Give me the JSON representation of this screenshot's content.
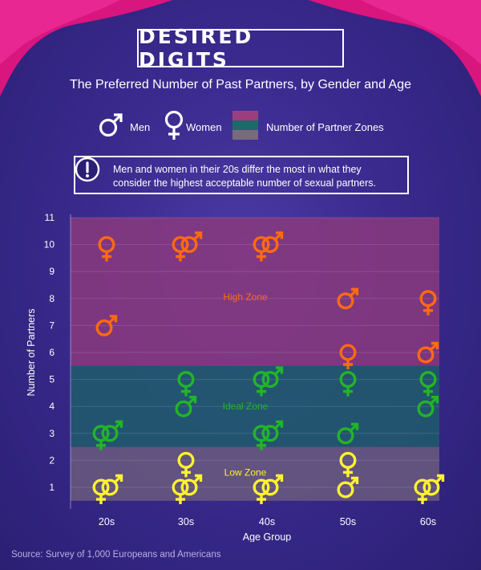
{
  "header": {
    "title": "DESIRED DIGITS",
    "subtitle": "The Preferred Number of Past Partners, by Gender and Age"
  },
  "legend": {
    "men_label": "Men",
    "women_label": "Women",
    "zones_label": "Number of Partner Zones"
  },
  "callout": {
    "text": "Men and women in their 20s differ the most in what they consider the highest acceptable number of sexual partners."
  },
  "source": "Source: Survey of 1,000 Europeans and Americans",
  "colors": {
    "background": "#3a2a8e",
    "high": "#ff6a10",
    "ideal": "#22b527",
    "low": "#fff231",
    "curtain": "#e01e8c",
    "high_zone": "#8a3a7d",
    "ideal_zone": "#1f5c6b",
    "low_zone": "#6a5a7e"
  },
  "icons": {
    "men": "male-symbol-icon",
    "women": "female-symbol-icon",
    "callout": "exclamation-icon"
  },
  "chart_data": {
    "type": "scatter",
    "xlabel": "Age Group",
    "ylabel": "Number of Partners",
    "categories": [
      "20s",
      "30s",
      "40s",
      "50s",
      "60s"
    ],
    "ylim": [
      0,
      11
    ],
    "yticks": [
      1,
      2,
      3,
      4,
      5,
      6,
      7,
      8,
      9,
      10,
      11
    ],
    "zones": [
      {
        "label": "Low Zone",
        "from": 0.5,
        "to": 2.5,
        "color": "#6a5a7e"
      },
      {
        "label": "Ideal Zone",
        "from": 2.5,
        "to": 5.5,
        "color": "#1f5c6b"
      },
      {
        "label": "High Zone",
        "from": 5.5,
        "to": 11,
        "color": "#8a3a7d"
      }
    ],
    "series": [
      {
        "name": "Men",
        "values": {
          "20s": [
            1,
            3,
            7
          ],
          "30s": [
            1,
            4,
            10
          ],
          "40s": [
            1,
            3,
            5,
            10
          ],
          "50s": [
            1,
            3,
            8
          ],
          "60s": [
            1,
            4,
            6
          ]
        }
      },
      {
        "name": "Women",
        "values": {
          "20s": [
            1,
            3,
            10
          ],
          "30s": [
            1,
            2,
            5,
            10
          ],
          "40s": [
            1,
            3,
            5,
            10
          ],
          "50s": [
            2,
            5,
            6
          ],
          "60s": [
            1,
            5,
            8
          ]
        }
      }
    ]
  }
}
